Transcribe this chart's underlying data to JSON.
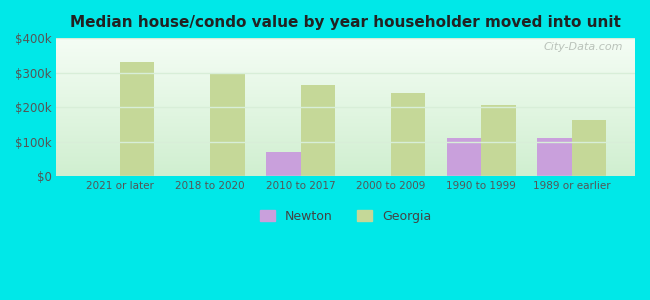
{
  "title": "Median house/condo value by year householder moved into unit",
  "categories": [
    "2021 or later",
    "2018 to 2020",
    "2010 to 2017",
    "2000 to 2009",
    "1990 to 1999",
    "1989 or earlier"
  ],
  "newton_values": [
    null,
    null,
    70000,
    null,
    110000,
    110000
  ],
  "georgia_values": [
    330000,
    298000,
    265000,
    242000,
    207000,
    163000
  ],
  "newton_color": "#c9a0dc",
  "georgia_color": "#c5d898",
  "background_top": "#f5fdf5",
  "background_bottom": "#d0efd0",
  "outer_background": "#00e8e8",
  "bar_width": 0.38,
  "ylim": [
    0,
    400000
  ],
  "yticks": [
    0,
    100000,
    200000,
    300000,
    400000
  ],
  "ytick_labels": [
    "$0",
    "$100k",
    "$200k",
    "$300k",
    "$400k"
  ],
  "watermark": "City-Data.com",
  "legend_labels": [
    "Newton",
    "Georgia"
  ],
  "grid_color": "#d8eed8"
}
